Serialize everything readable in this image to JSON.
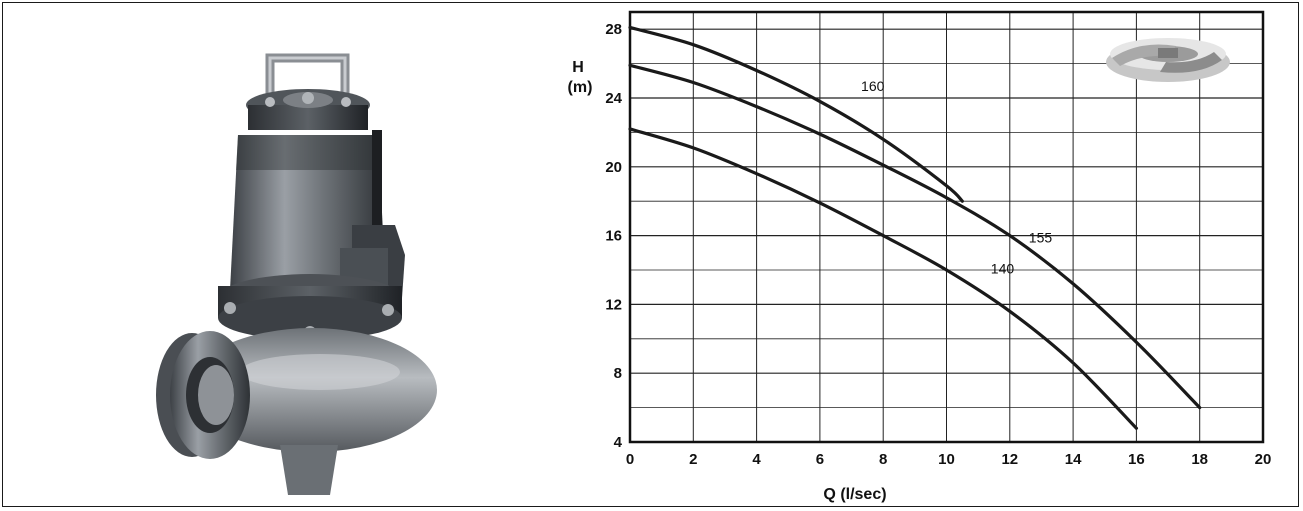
{
  "image": {
    "product_illustration": "submersible-pump",
    "impeller_illustration": "impeller"
  },
  "chart_data": {
    "type": "line",
    "title": "",
    "xlabel": "Q (l/sec)",
    "ylabel_line1": "H",
    "ylabel_line2": "(m)",
    "xlim": [
      0,
      20
    ],
    "ylim": [
      4,
      29
    ],
    "x_ticks": [
      "0",
      "2",
      "4",
      "6",
      "8",
      "10",
      "12",
      "14",
      "16",
      "18",
      "20"
    ],
    "y_ticks": [
      "4",
      "8",
      "12",
      "16",
      "20",
      "24",
      "28"
    ],
    "grid": true,
    "line_color": "#1a1a1a",
    "series": [
      {
        "name": "160",
        "x": [
          0,
          2,
          4,
          6,
          8,
          10,
          10.5
        ],
        "y": [
          28.1,
          27.1,
          25.6,
          23.8,
          21.6,
          18.9,
          18.0
        ],
        "label_at": [
          7.3,
          24.4
        ]
      },
      {
        "name": "155",
        "x": [
          0,
          2,
          4,
          6,
          8,
          10,
          12,
          14,
          16,
          18
        ],
        "y": [
          25.9,
          24.9,
          23.5,
          21.9,
          20.1,
          18.2,
          16.0,
          13.2,
          9.8,
          6.0
        ],
        "label_at": [
          12.6,
          15.6
        ]
      },
      {
        "name": "140",
        "x": [
          0,
          2,
          4,
          6,
          8,
          10,
          12,
          14,
          16
        ],
        "y": [
          22.2,
          21.1,
          19.6,
          17.9,
          16.0,
          14.0,
          11.6,
          8.6,
          4.8
        ],
        "label_at": [
          11.4,
          13.8
        ]
      }
    ]
  }
}
